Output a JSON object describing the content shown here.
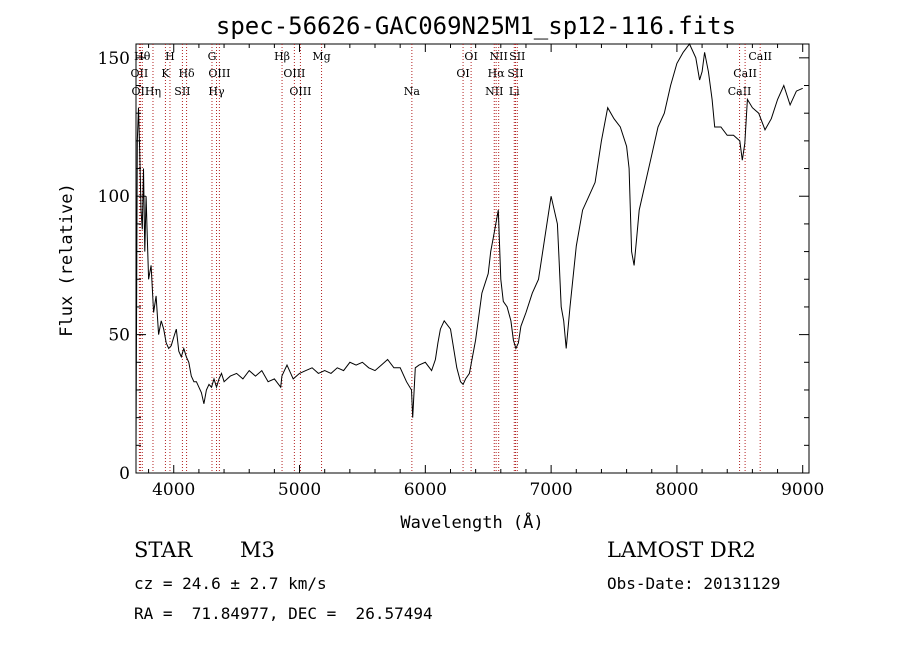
{
  "chart_data": {
    "type": "line",
    "title": "spec-56626-GAC069N25M1_sp12-116.fits",
    "xlabel": "Wavelength (Å)",
    "ylabel": "Flux (relative)",
    "xlim": [
      3700,
      9050
    ],
    "ylim": [
      0,
      155
    ],
    "xticks": [
      4000,
      5000,
      6000,
      7000,
      8000,
      9000
    ],
    "yticks": [
      0,
      50,
      100,
      150
    ],
    "grid": false,
    "series": [
      {
        "x": [
          3700,
          3710,
          3720,
          3730,
          3740,
          3750,
          3760,
          3770,
          3780,
          3790,
          3800,
          3820,
          3840,
          3860,
          3880,
          3900,
          3920,
          3940,
          3960,
          3980,
          4000,
          4020,
          4040,
          4060,
          4080,
          4100,
          4120,
          4140,
          4160,
          4180,
          4200,
          4220,
          4240,
          4260,
          4280,
          4300,
          4320,
          4340,
          4360,
          4380,
          4400,
          4450,
          4500,
          4550,
          4600,
          4650,
          4700,
          4750,
          4800,
          4850,
          4860,
          4880,
          4900,
          4950,
          5000,
          5050,
          5100,
          5150,
          5200,
          5250,
          5300,
          5350,
          5400,
          5450,
          5500,
          5550,
          5600,
          5650,
          5700,
          5750,
          5800,
          5850,
          5890,
          5900,
          5920,
          5950,
          6000,
          6050,
          6080,
          6100,
          6120,
          6150,
          6200,
          6250,
          6280,
          6300,
          6320,
          6350,
          6400,
          6450,
          6500,
          6520,
          6540,
          6560,
          6580,
          6600,
          6620,
          6650,
          6680,
          6700,
          6720,
          6740,
          6760,
          6800,
          6850,
          6900,
          6950,
          7000,
          7050,
          7060,
          7080,
          7100,
          7120,
          7150,
          7200,
          7250,
          7300,
          7350,
          7400,
          7450,
          7500,
          7550,
          7600,
          7620,
          7640,
          7660,
          7680,
          7700,
          7750,
          7800,
          7850,
          7900,
          7950,
          8000,
          8050,
          8100,
          8150,
          8180,
          8200,
          8220,
          8250,
          8280,
          8300,
          8350,
          8400,
          8450,
          8500,
          8520,
          8540,
          8560,
          8600,
          8650,
          8700,
          8750,
          8800,
          8850,
          8900,
          8950,
          9000
        ],
        "y": [
          8,
          120,
          132,
          115,
          95,
          88,
          110,
          80,
          100,
          85,
          70,
          75,
          58,
          64,
          50,
          55,
          52,
          47,
          45,
          46,
          49,
          52,
          44,
          42,
          45,
          42,
          40,
          35,
          33,
          33,
          31,
          29,
          25,
          30,
          32,
          31,
          34,
          31,
          34,
          36,
          33,
          35,
          36,
          34,
          37,
          35,
          37,
          33,
          34,
          31,
          35,
          37,
          39,
          34,
          36,
          37,
          38,
          36,
          37,
          36,
          38,
          37,
          40,
          39,
          40,
          38,
          37,
          39,
          41,
          38,
          38,
          33,
          30,
          20,
          38,
          39,
          40,
          37,
          41,
          47,
          52,
          55,
          52,
          38,
          33,
          32,
          34,
          36,
          48,
          65,
          72,
          80,
          85,
          90,
          95,
          70,
          62,
          60,
          55,
          48,
          45,
          47,
          53,
          58,
          65,
          70,
          85,
          100,
          90,
          80,
          60,
          55,
          45,
          60,
          82,
          95,
          100,
          105,
          120,
          132,
          128,
          125,
          118,
          110,
          80,
          75,
          85,
          95,
          105,
          115,
          125,
          130,
          140,
          148,
          152,
          155,
          150,
          142,
          145,
          152,
          145,
          135,
          125,
          125,
          122,
          122,
          120,
          113,
          119,
          135,
          132,
          130,
          124,
          128,
          135,
          140,
          133,
          138,
          139
        ]
      }
    ],
    "line_markers": [
      {
        "wl": 3727,
        "label": "OII",
        "row": 1
      },
      {
        "wl": 3750,
        "label": "Hθ",
        "row": 0
      },
      {
        "wl": 3735,
        "label": "OII",
        "row": 2
      },
      {
        "wl": 3835,
        "label": "Hη",
        "row": 2
      },
      {
        "wl": 3934,
        "label": "K",
        "row": 1
      },
      {
        "wl": 3970,
        "label": "H",
        "row": 0
      },
      {
        "wl": 4102,
        "label": "Hδ",
        "row": 1
      },
      {
        "wl": 4069,
        "label": "SII",
        "row": 2
      },
      {
        "wl": 4304,
        "label": "G",
        "row": 0
      },
      {
        "wl": 4340,
        "label": "Hγ",
        "row": 2
      },
      {
        "wl": 4363,
        "label": "OIII",
        "row": 1
      },
      {
        "wl": 4861,
        "label": "Hβ",
        "row": 0
      },
      {
        "wl": 4959,
        "label": "OIII",
        "row": 1
      },
      {
        "wl": 5007,
        "label": "OIII",
        "row": 2
      },
      {
        "wl": 5175,
        "label": "Mg",
        "row": 0
      },
      {
        "wl": 5893,
        "label": "Na",
        "row": 2
      },
      {
        "wl": 6300,
        "label": "OI",
        "row": 1
      },
      {
        "wl": 6364,
        "label": "OI",
        "row": 0
      },
      {
        "wl": 6548,
        "label": "NII",
        "row": 2
      },
      {
        "wl": 6563,
        "label": "Hα",
        "row": 1
      },
      {
        "wl": 6583,
        "label": "NII",
        "row": 0
      },
      {
        "wl": 6707,
        "label": "Li",
        "row": 2
      },
      {
        "wl": 6717,
        "label": "SII",
        "row": 1
      },
      {
        "wl": 6731,
        "label": "SII",
        "row": 0
      },
      {
        "wl": 8498,
        "label": "CaII",
        "row": 2
      },
      {
        "wl": 8542,
        "label": "CaII",
        "row": 1
      },
      {
        "wl": 8662,
        "label": "CaII",
        "row": 0
      }
    ]
  },
  "info": {
    "class": "STAR",
    "subclass": "M3",
    "survey": "LAMOST DR2",
    "cz": "cz = 24.6 ± 2.7 km/s",
    "obs_date": "Obs-Date: 20131129",
    "coords": "RA =  71.84977, DEC =  26.57494"
  }
}
